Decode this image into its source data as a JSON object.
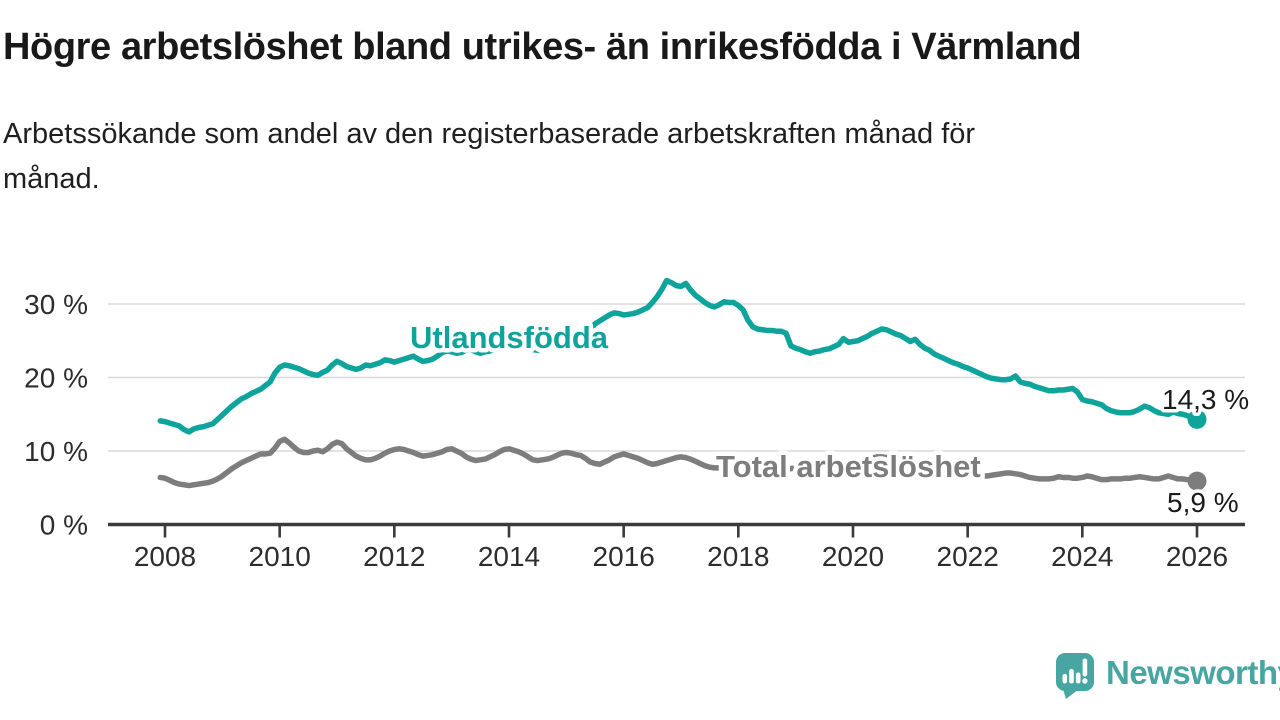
{
  "title": "Högre arbetslöshet bland utrikes- än inrikesfödda i Värmland",
  "subtitle_lines": [
    "Arbetssökande som andel av den registerbaserade arbetskraften månad för",
    "månad."
  ],
  "branding": {
    "logo_text": "Newsworthy",
    "logo_color": "#47a6a2",
    "logo_icon": "speech-bubble-bar-chart"
  },
  "chart_data": {
    "type": "line",
    "title": "Högre arbetslöshet bland utrikes- än inrikesfödda i Värmland",
    "subtitle": "Arbetssökande som andel av den registerbaserade arbetskraften månad för månad.",
    "unit": "%",
    "grid": true,
    "legend_position": "inline-labels",
    "x_axis": {
      "start_year": 2007.917,
      "interval_years": 0.083333,
      "tick_years": [
        2008,
        2010,
        2012,
        2014,
        2016,
        2018,
        2020,
        2022,
        2024,
        2026
      ],
      "tick_labels": [
        "2008",
        "2010",
        "2012",
        "2014",
        "2016",
        "2018",
        "2020",
        "2022",
        "2024",
        "2026"
      ]
    },
    "y_axis": {
      "tick_values": [
        0,
        10,
        20,
        30
      ],
      "tick_labels": [
        "0 %",
        "10 %",
        "20 %",
        "30 %"
      ],
      "range": [
        0,
        34
      ]
    },
    "series": [
      {
        "id": "utlandsfodda",
        "name": "Utlandsfödda",
        "color": "#0fa49b",
        "end_label": "14,3 %",
        "end_value": 14.3,
        "values": [
          14.1,
          14.0,
          13.8,
          13.6,
          13.4,
          12.9,
          12.6,
          13.0,
          13.2,
          13.3,
          13.5,
          13.7,
          14.3,
          14.9,
          15.5,
          16.1,
          16.6,
          17.1,
          17.4,
          17.8,
          18.1,
          18.4,
          18.9,
          19.4,
          20.6,
          21.4,
          21.7,
          21.6,
          21.4,
          21.2,
          20.9,
          20.6,
          20.4,
          20.3,
          20.7,
          21.0,
          21.7,
          22.2,
          21.9,
          21.5,
          21.3,
          21.1,
          21.3,
          21.7,
          21.6,
          21.8,
          22.0,
          22.4,
          22.3,
          22.1,
          22.3,
          22.5,
          22.7,
          22.9,
          22.5,
          22.2,
          22.3,
          22.5,
          22.9,
          23.4,
          23.6,
          23.5,
          23.3,
          23.4,
          23.7,
          23.8,
          23.5,
          23.3,
          23.5,
          23.6,
          23.8,
          24.0,
          24.2,
          24.1,
          24.2,
          24.3,
          24.2,
          24.0,
          23.8,
          23.7,
          23.9,
          24.0,
          24.2,
          24.4,
          24.7,
          24.9,
          25.1,
          25.3,
          25.5,
          25.8,
          26.5,
          27.3,
          27.7,
          28.1,
          28.5,
          28.8,
          28.7,
          28.5,
          28.6,
          28.7,
          28.9,
          29.2,
          29.5,
          30.2,
          31.0,
          32.0,
          33.2,
          32.9,
          32.5,
          32.4,
          32.8,
          31.9,
          31.2,
          30.7,
          30.2,
          29.8,
          29.6,
          29.9,
          30.3,
          30.2,
          30.2,
          29.8,
          29.2,
          27.8,
          26.9,
          26.6,
          26.5,
          26.4,
          26.4,
          26.3,
          26.3,
          26.0,
          24.3,
          24.0,
          23.8,
          23.5,
          23.3,
          23.5,
          23.6,
          23.8,
          23.9,
          24.2,
          24.5,
          25.3,
          24.8,
          24.9,
          25.0,
          25.3,
          25.6,
          26.0,
          26.3,
          26.6,
          26.5,
          26.2,
          25.9,
          25.7,
          25.3,
          24.9,
          25.2,
          24.5,
          24.0,
          23.7,
          23.2,
          22.9,
          22.6,
          22.3,
          22.0,
          21.8,
          21.5,
          21.3,
          21.0,
          20.7,
          20.4,
          20.1,
          19.9,
          19.8,
          19.7,
          19.7,
          19.8,
          20.2,
          19.4,
          19.2,
          19.1,
          18.8,
          18.6,
          18.4,
          18.2,
          18.2,
          18.3,
          18.3,
          18.4,
          18.5,
          18.0,
          17.0,
          16.8,
          16.7,
          16.5,
          16.3,
          15.8,
          15.5,
          15.3,
          15.2,
          15.2,
          15.2,
          15.4,
          15.7,
          16.1,
          15.9,
          15.5,
          15.2,
          15.1,
          15.0,
          15.3,
          15.1,
          15.0,
          14.8,
          14.6,
          14.3
        ]
      },
      {
        "id": "total",
        "name": "Total arbetslöshet",
        "color": "#7d7d7d",
        "end_label": "5,9 %",
        "end_value": 5.9,
        "values": [
          6.4,
          6.3,
          6.0,
          5.7,
          5.5,
          5.4,
          5.3,
          5.4,
          5.5,
          5.6,
          5.7,
          5.9,
          6.2,
          6.6,
          7.1,
          7.6,
          8.0,
          8.4,
          8.7,
          9.0,
          9.3,
          9.6,
          9.6,
          9.7,
          10.4,
          11.3,
          11.6,
          11.1,
          10.5,
          10.0,
          9.8,
          9.8,
          10.0,
          10.1,
          9.9,
          10.3,
          10.9,
          11.2,
          11.0,
          10.3,
          9.8,
          9.3,
          9.0,
          8.8,
          8.8,
          9.0,
          9.3,
          9.7,
          10.0,
          10.2,
          10.3,
          10.2,
          10.0,
          9.8,
          9.5,
          9.3,
          9.4,
          9.5,
          9.7,
          9.9,
          10.2,
          10.3,
          10.0,
          9.7,
          9.2,
          8.9,
          8.7,
          8.8,
          8.9,
          9.2,
          9.5,
          9.9,
          10.2,
          10.3,
          10.1,
          9.9,
          9.6,
          9.2,
          8.8,
          8.7,
          8.8,
          8.9,
          9.1,
          9.4,
          9.7,
          9.8,
          9.7,
          9.5,
          9.4,
          9.0,
          8.5,
          8.3,
          8.2,
          8.5,
          8.8,
          9.2,
          9.4,
          9.6,
          9.4,
          9.2,
          9.0,
          8.7,
          8.4,
          8.2,
          8.3,
          8.5,
          8.7,
          8.9,
          9.1,
          9.2,
          9.1,
          8.9,
          8.6,
          8.3,
          8.0,
          7.8,
          7.7,
          7.7,
          7.8,
          8.0,
          8.1,
          8.2,
          8.1,
          7.9,
          7.7,
          7.5,
          7.3,
          7.2,
          7.2,
          7.3,
          7.4,
          7.5,
          7.6,
          7.7,
          7.6,
          7.4,
          7.2,
          7.1,
          7.0,
          7.0,
          7.1,
          7.2,
          7.3,
          7.5,
          7.6,
          7.8,
          8.0,
          8.3,
          8.7,
          9.0,
          9.2,
          9.2,
          9.1,
          9.0,
          8.9,
          8.8,
          8.7,
          8.7,
          8.6,
          8.4,
          8.2,
          7.9,
          7.7,
          7.5,
          7.4,
          7.3,
          7.2,
          7.1,
          7.1,
          7.0,
          6.9,
          6.7,
          6.6,
          6.6,
          6.7,
          6.8,
          6.9,
          7.0,
          7.0,
          6.9,
          6.8,
          6.6,
          6.4,
          6.3,
          6.2,
          6.2,
          6.2,
          6.3,
          6.5,
          6.4,
          6.4,
          6.3,
          6.3,
          6.4,
          6.6,
          6.5,
          6.3,
          6.1,
          6.1,
          6.2,
          6.2,
          6.2,
          6.3,
          6.3,
          6.4,
          6.5,
          6.4,
          6.3,
          6.2,
          6.2,
          6.4,
          6.6,
          6.4,
          6.2,
          6.2,
          6.1,
          6.0,
          5.9
        ]
      }
    ]
  }
}
